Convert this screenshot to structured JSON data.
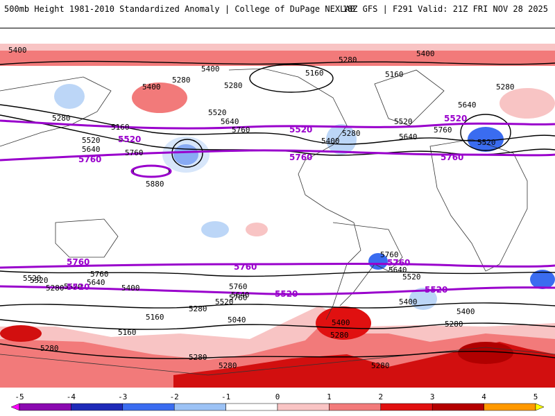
{
  "header": {
    "left": "500mb Height 1981-2010 Standardized Anomaly | College of DuPage NEXLAB",
    "right": "18Z GFS | F291 Valid: 21Z FRI NOV 28 2025"
  },
  "contour_labels": [
    "5400",
    "5280",
    "5400",
    "5160",
    "5160",
    "5400",
    "5280",
    "5280",
    "5280",
    "5520",
    "5640",
    "5760",
    "5160",
    "5520",
    "5640",
    "5760",
    "5280",
    "5400",
    "5640",
    "5760",
    "5520",
    "5640",
    "5520",
    "5280",
    "5400",
    "5520",
    "5760",
    "5880",
    "5760",
    "5760",
    "5640",
    "5400",
    "5520",
    "5640",
    "5760",
    "5280",
    "5520",
    "5640",
    "5400",
    "5520",
    "5280",
    "5160",
    "5040",
    "5400",
    "5400",
    "5160",
    "5280",
    "5280",
    "5280",
    "5160",
    "5280",
    "5280",
    "5280",
    "5520"
  ],
  "purple_contours": [
    {
      "label": "5520"
    },
    {
      "label": "5520"
    },
    {
      "label": "5520"
    },
    {
      "label": "5760"
    },
    {
      "label": "5760"
    },
    {
      "label": "5760"
    },
    {
      "label": "5760"
    },
    {
      "label": "5760"
    },
    {
      "label": "5760"
    },
    {
      "label": "5520"
    },
    {
      "label": "5520"
    },
    {
      "label": "5520"
    }
  ],
  "colorbar": {
    "ticks": [
      "-5",
      "-4",
      "-3",
      "-2",
      "-1",
      "0",
      "1",
      "2",
      "3",
      "4",
      "5"
    ],
    "colors": [
      "#ff00ff",
      "#8a0ab0",
      "#1e2ab8",
      "#3a6cf0",
      "#9cc2f5",
      "#ffffff",
      "#f9c4c4",
      "#f27a7a",
      "#e01010",
      "#b40000",
      "#ff9900",
      "#ffff00"
    ]
  },
  "colors": {
    "purple": "#9900cc",
    "contour": "#000000",
    "neg_strong": "#3a6cf0",
    "neg_weak": "#bcd6f7",
    "pos_weak": "#f8c4c4",
    "pos_mid": "#f27a7a",
    "pos_strong": "#d20f0f",
    "pos_xstrong": "#b00000"
  }
}
